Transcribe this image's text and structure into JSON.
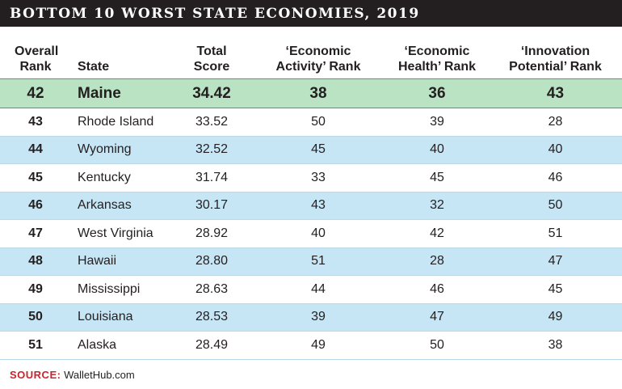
{
  "chart_data": {
    "type": "table",
    "title": "BOTTOM 10 WORST STATE ECONOMIES, 2019",
    "columns": [
      {
        "line1": "Overall",
        "line2": "Rank"
      },
      {
        "line1": "",
        "line2": "State"
      },
      {
        "line1": "Total",
        "line2": "Score"
      },
      {
        "line1": "‘Economic",
        "line2": "Activity’ Rank"
      },
      {
        "line1": "‘Economic",
        "line2": "Health’ Rank"
      },
      {
        "line1": "‘Innovation",
        "line2": "Potential’ Rank"
      }
    ],
    "rows": [
      {
        "rank": "42",
        "state": "Maine",
        "score": "34.42",
        "activity": "38",
        "health": "36",
        "innovation": "43",
        "highlight": true
      },
      {
        "rank": "43",
        "state": "Rhode Island",
        "score": "33.52",
        "activity": "50",
        "health": "39",
        "innovation": "28"
      },
      {
        "rank": "44",
        "state": "Wyoming",
        "score": "32.52",
        "activity": "45",
        "health": "40",
        "innovation": "40"
      },
      {
        "rank": "45",
        "state": "Kentucky",
        "score": "31.74",
        "activity": "33",
        "health": "45",
        "innovation": "46"
      },
      {
        "rank": "46",
        "state": "Arkansas",
        "score": "30.17",
        "activity": "43",
        "health": "32",
        "innovation": "50"
      },
      {
        "rank": "47",
        "state": "West Virginia",
        "score": "28.92",
        "activity": "40",
        "health": "42",
        "innovation": "51"
      },
      {
        "rank": "48",
        "state": "Hawaii",
        "score": "28.80",
        "activity": "51",
        "health": "28",
        "innovation": "47"
      },
      {
        "rank": "49",
        "state": "Mississippi",
        "score": "28.63",
        "activity": "44",
        "health": "46",
        "innovation": "45"
      },
      {
        "rank": "50",
        "state": "Louisiana",
        "score": "28.53",
        "activity": "39",
        "health": "47",
        "innovation": "49"
      },
      {
        "rank": "51",
        "state": "Alaska",
        "score": "28.49",
        "activity": "49",
        "health": "50",
        "innovation": "38"
      }
    ]
  },
  "source": {
    "label": "SOURCE:",
    "value": "WalletHub.com"
  },
  "colors": {
    "title_bg": "#231f20",
    "highlight_row": "#b9e3c3",
    "stripe_row": "#c6e6f5",
    "plain_row": "#ffffff",
    "source_label": "#cc2229"
  }
}
